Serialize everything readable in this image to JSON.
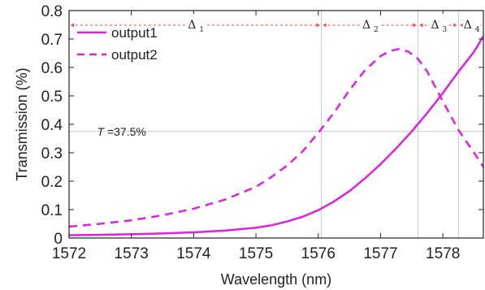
{
  "chart_data": {
    "type": "line",
    "xlabel": "Wavelength (nm)",
    "ylabel": "Transmission (%)",
    "xlim": [
      1572,
      1578.65
    ],
    "ylim": [
      0,
      0.8
    ],
    "xticks": [
      "1572",
      "1573",
      "1574",
      "1575",
      "1576",
      "1577",
      "1578"
    ],
    "yticks": [
      "0",
      "0.1",
      "0.2",
      "0.3",
      "0.4",
      "0.5",
      "0.6",
      "0.7",
      "0.8"
    ],
    "grid": false,
    "legend_position": "top-left",
    "series": [
      {
        "name": "output1",
        "style": "solid",
        "color": "#e020e0",
        "x": [
          1572.0,
          1572.5,
          1573.0,
          1573.5,
          1574.0,
          1574.5,
          1575.0,
          1575.25,
          1575.5,
          1575.75,
          1576.0,
          1576.25,
          1576.5,
          1576.75,
          1577.0,
          1577.25,
          1577.5,
          1577.75,
          1578.0,
          1578.25,
          1578.5,
          1578.65
        ],
        "y": [
          0.01,
          0.011,
          0.013,
          0.016,
          0.02,
          0.026,
          0.036,
          0.045,
          0.058,
          0.075,
          0.098,
          0.128,
          0.165,
          0.21,
          0.26,
          0.315,
          0.375,
          0.44,
          0.51,
          0.585,
          0.655,
          0.71
        ]
      },
      {
        "name": "output2",
        "style": "dashed",
        "color": "#e020e0",
        "x": [
          1572.0,
          1572.5,
          1573.0,
          1573.5,
          1574.0,
          1574.5,
          1575.0,
          1575.25,
          1575.5,
          1575.75,
          1576.0,
          1576.25,
          1576.5,
          1576.75,
          1577.0,
          1577.15,
          1577.3,
          1577.45,
          1577.6,
          1577.75,
          1578.0,
          1578.25,
          1578.5,
          1578.65
        ],
        "y": [
          0.04,
          0.05,
          0.062,
          0.08,
          0.103,
          0.135,
          0.18,
          0.215,
          0.255,
          0.305,
          0.37,
          0.44,
          0.52,
          0.59,
          0.64,
          0.658,
          0.665,
          0.655,
          0.63,
          0.585,
          0.48,
          0.38,
          0.3,
          0.25
        ]
      }
    ],
    "annotations": {
      "threshold_label_italic": "T",
      "threshold_label_rest": " =37.5%",
      "threshold_y": 0.375,
      "delta_symbol": "Δ",
      "deltas": [
        {
          "sub": "1",
          "x_start": 1572.0,
          "x_end": 1576.05
        },
        {
          "sub": "2",
          "x_start": 1576.05,
          "x_end": 1577.6
        },
        {
          "sub": "3",
          "x_start": 1577.6,
          "x_end": 1578.25
        },
        {
          "sub": "4",
          "x_start": 1578.25,
          "x_end": 1578.65
        }
      ],
      "vlines": [
        1576.05,
        1577.6,
        1578.25
      ]
    }
  }
}
